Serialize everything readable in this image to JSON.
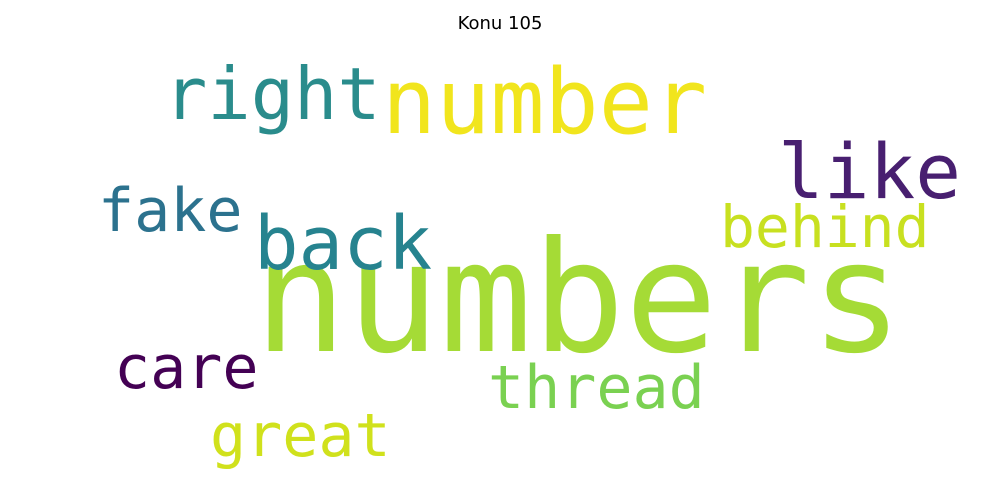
{
  "title": "Konu 105",
  "words": [
    {
      "text": "numbers",
      "color": "#a5db36"
    },
    {
      "text": "number",
      "color": "#f1e51d"
    },
    {
      "text": "right",
      "color": "#2a8c8c"
    },
    {
      "text": "like",
      "color": "#481f70"
    },
    {
      "text": "back",
      "color": "#26838f"
    },
    {
      "text": "fake",
      "color": "#2c728e"
    },
    {
      "text": "behind",
      "color": "#c8e020"
    },
    {
      "text": "care",
      "color": "#440154"
    },
    {
      "text": "thread",
      "color": "#7ad151"
    },
    {
      "text": "great",
      "color": "#d0e11c"
    }
  ]
}
